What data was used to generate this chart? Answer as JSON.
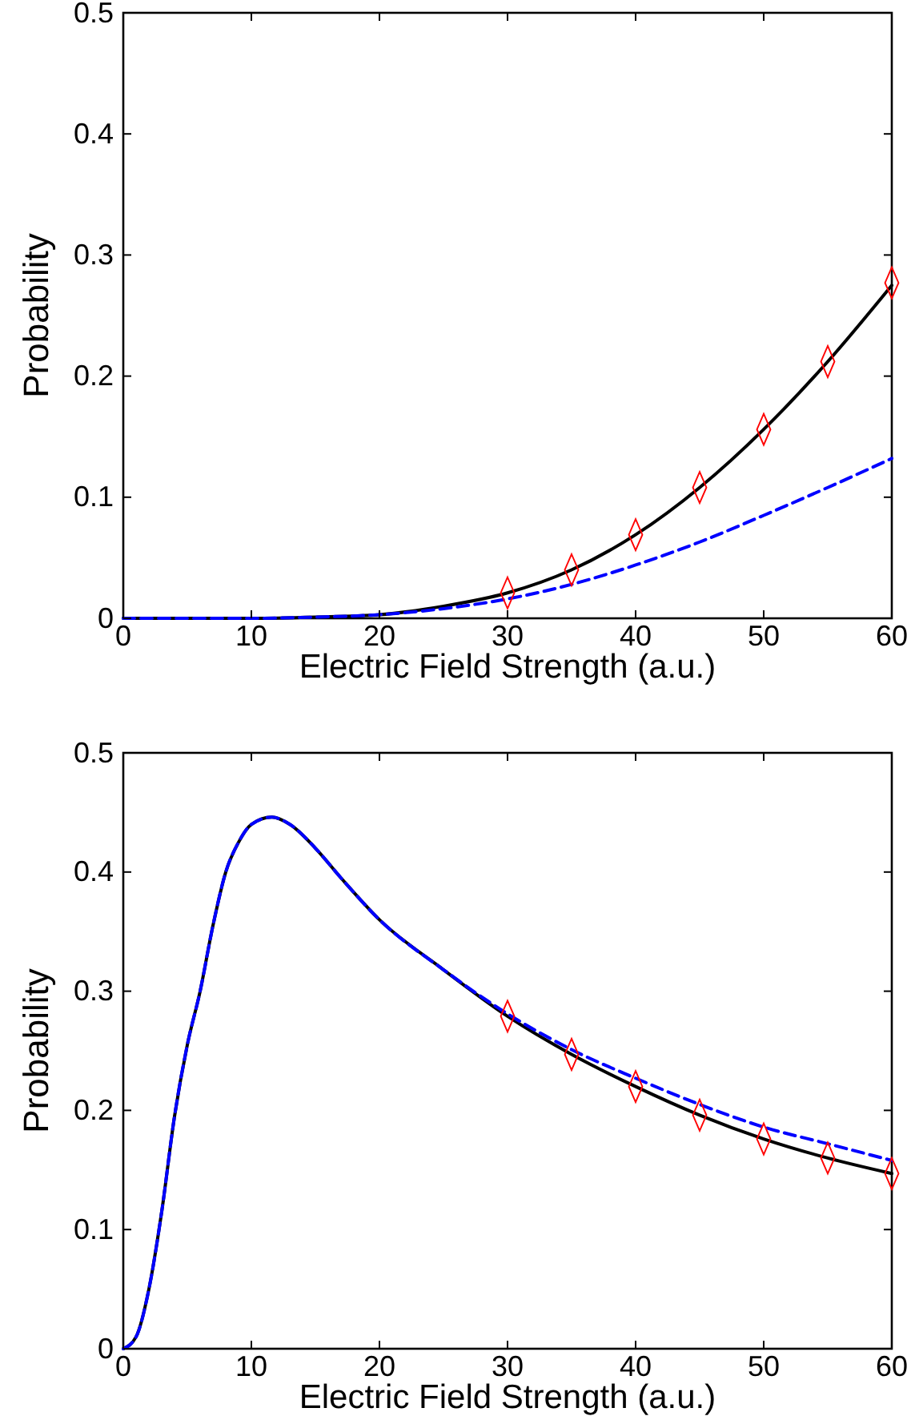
{
  "chart_data": [
    {
      "type": "line",
      "xlabel": "Electric Field Strength (a.u.)",
      "ylabel": "Probability",
      "xlim": [
        0,
        60
      ],
      "ylim": [
        0,
        0.5
      ],
      "xticks": [
        0,
        10,
        20,
        30,
        40,
        50,
        60
      ],
      "yticks": [
        0,
        0.1,
        0.2,
        0.3,
        0.4,
        0.5
      ],
      "grid": false,
      "series": [
        {
          "color": "#000000",
          "line_style": "solid",
          "marker": "none",
          "x": [
            0,
            5,
            10,
            15,
            20,
            25,
            30,
            35,
            40,
            45,
            50,
            55,
            60
          ],
          "values": [
            0,
            0,
            0,
            0.001,
            0.003,
            0.01,
            0.021,
            0.04,
            0.069,
            0.108,
            0.156,
            0.212,
            0.275
          ]
        },
        {
          "color": "#0000ff",
          "line_style": "dashed",
          "marker": "none",
          "x": [
            0,
            5,
            10,
            15,
            20,
            25,
            30,
            35,
            40,
            45,
            50,
            55,
            60
          ],
          "values": [
            0,
            0,
            0,
            0.001,
            0.003,
            0.008,
            0.016,
            0.028,
            0.044,
            0.063,
            0.085,
            0.108,
            0.132
          ]
        },
        {
          "type": "scatter",
          "color": "#ff0000",
          "marker": "diamond",
          "x": [
            30,
            35,
            40,
            45,
            50,
            55,
            60
          ],
          "values": [
            0.021,
            0.04,
            0.069,
            0.108,
            0.156,
            0.212,
            0.277
          ]
        }
      ]
    },
    {
      "type": "line",
      "xlabel": "Electric Field Strength (a.u.)",
      "ylabel": "Probability",
      "xlim": [
        0,
        60
      ],
      "ylim": [
        0,
        0.5
      ],
      "xticks": [
        0,
        10,
        20,
        30,
        40,
        50,
        60
      ],
      "yticks": [
        0,
        0.1,
        0.2,
        0.3,
        0.4,
        0.5
      ],
      "grid": false,
      "series": [
        {
          "color": "#000000",
          "line_style": "solid",
          "marker": "none",
          "x": [
            0,
            1,
            2,
            3,
            4,
            5,
            6,
            7,
            8,
            9,
            10,
            11.6,
            13,
            15,
            17,
            20,
            25,
            30,
            35,
            40,
            45,
            50,
            55,
            60
          ],
          "values": [
            0,
            0.01,
            0.05,
            0.115,
            0.195,
            0.255,
            0.3,
            0.355,
            0.4,
            0.425,
            0.44,
            0.446,
            0.44,
            0.42,
            0.395,
            0.36,
            0.318,
            0.279,
            0.247,
            0.22,
            0.196,
            0.176,
            0.16,
            0.147
          ]
        },
        {
          "color": "#0000ff",
          "line_style": "dashed",
          "marker": "none",
          "x": [
            0,
            1,
            2,
            3,
            4,
            5,
            6,
            7,
            8,
            9,
            10,
            11.6,
            13,
            15,
            17,
            20,
            25,
            30,
            35,
            40,
            45,
            50,
            55,
            60
          ],
          "values": [
            0,
            0.01,
            0.05,
            0.115,
            0.195,
            0.255,
            0.3,
            0.355,
            0.4,
            0.425,
            0.44,
            0.446,
            0.44,
            0.42,
            0.395,
            0.36,
            0.318,
            0.281,
            0.251,
            0.227,
            0.205,
            0.186,
            0.172,
            0.158
          ]
        },
        {
          "type": "scatter",
          "color": "#ff0000",
          "marker": "diamond",
          "x": [
            30,
            35,
            40,
            45,
            50,
            55,
            60
          ],
          "values": [
            0.279,
            0.247,
            0.22,
            0.196,
            0.176,
            0.16,
            0.147
          ]
        }
      ]
    }
  ]
}
